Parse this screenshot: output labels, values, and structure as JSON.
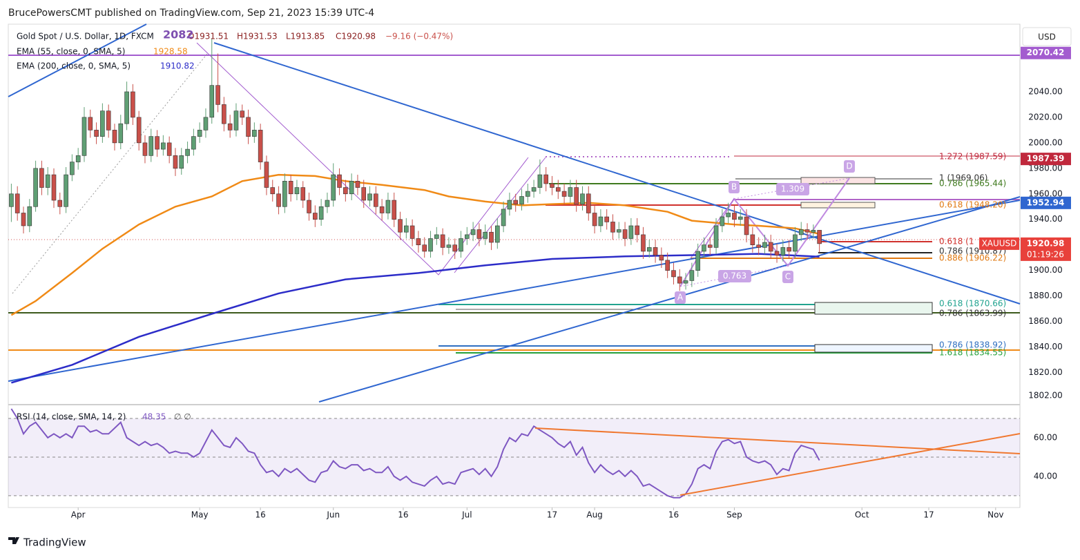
{
  "header": {
    "publisher": "BrucePowersCMT published on TradingView.com, Sep 21, 2023 15:39 UTC-4"
  },
  "chart_data": {
    "type": "candlestick",
    "title": "Gold Spot / U.S. Dollar, 1D, FXCM",
    "ohlc_labels": [
      "O1931.51",
      "H1931.53",
      "L1913.85",
      "C1920.98",
      "−9.16 (−0.47%)"
    ],
    "currency": "USD",
    "up_color": "#5f9f74",
    "down_color": "#c9504a",
    "open": [
      1950,
      1960,
      1945,
      1935,
      1950,
      1980,
      1965,
      1975,
      1955,
      1950,
      1975,
      1985,
      1990,
      2020,
      2010,
      2005,
      2025,
      2010,
      2000,
      2015,
      2040,
      2020,
      2000,
      1990,
      2005,
      1995,
      2000,
      1990,
      1980,
      1990,
      1995,
      2005,
      2010,
      2020,
      2045,
      2030,
      2015,
      2010,
      2025,
      2020,
      2005,
      2010,
      1985,
      1965,
      1960,
      1950,
      1970,
      1960,
      1965,
      1955,
      1945,
      1940,
      1950,
      1955,
      1975,
      1965,
      1960,
      1970,
      1965,
      1955,
      1960,
      1950,
      1945,
      1955,
      1940,
      1930,
      1935,
      1925,
      1920,
      1915,
      1925,
      1928,
      1918,
      1920,
      1915,
      1925,
      1928,
      1932,
      1925,
      1930,
      1922,
      1935,
      1948,
      1955,
      1952,
      1958,
      1962,
      1965,
      1975,
      1968,
      1965,
      1962,
      1958,
      1965,
      1952,
      1960,
      1945,
      1935,
      1942,
      1938,
      1930,
      1932,
      1925,
      1935,
      1928,
      1915,
      1918,
      1912,
      1908,
      1900,
      1895,
      1890,
      1892,
      1900,
      1915,
      1920,
      1918,
      1935,
      1942,
      1945,
      1940,
      1942,
      1928,
      1920,
      1918,
      1922,
      1915,
      1912,
      1918,
      1915,
      1928,
      1932,
      1930,
      1931.51
    ],
    "high": [
      1968,
      1966,
      1950,
      1956,
      1986,
      1986,
      1981,
      1980,
      1961,
      1981,
      1991,
      1996,
      2028,
      2026,
      2016,
      2031,
      2030,
      2015,
      2022,
      2048,
      2046,
      2025,
      2006,
      2011,
      2010,
      2006,
      2005,
      1996,
      1996,
      2001,
      2011,
      2016,
      2027,
      2082,
      2070,
      2036,
      2022,
      2031,
      2030,
      2026,
      2016,
      2015,
      1990,
      1971,
      1966,
      1976,
      1975,
      1971,
      1970,
      1961,
      1951,
      1956,
      1961,
      1984,
      1980,
      1971,
      1976,
      1975,
      1971,
      1966,
      1966,
      1956,
      1961,
      1961,
      1946,
      1941,
      1940,
      1931,
      1926,
      1931,
      1934,
      1933,
      1926,
      1925,
      1931,
      1934,
      1938,
      1937,
      1936,
      1935,
      1941,
      1954,
      1961,
      1960,
      1964,
      1968,
      1971,
      1987,
      1981,
      1974,
      1971,
      1968,
      1971,
      1971,
      1966,
      1966,
      1951,
      1948,
      1948,
      1944,
      1938,
      1938,
      1941,
      1941,
      1934,
      1924,
      1924,
      1918,
      1914,
      1906,
      1901,
      1898,
      1906,
      1921,
      1926,
      1926,
      1941,
      1948,
      1953,
      1951,
      1948,
      1948,
      1934,
      1926,
      1928,
      1928,
      1921,
      1924,
      1924,
      1934,
      1938,
      1937,
      1936,
      1931.53
    ],
    "low": [
      1938,
      1939,
      1929,
      1930,
      1946,
      1959,
      1959,
      1949,
      1944,
      1945,
      1970,
      1979,
      1985,
      2004,
      1999,
      2000,
      2004,
      1994,
      1995,
      2010,
      2014,
      1994,
      1984,
      1985,
      1989,
      1990,
      1984,
      1974,
      1975,
      1984,
      1990,
      2000,
      2004,
      2015,
      2024,
      2009,
      2004,
      2005,
      2014,
      1999,
      2000,
      1979,
      1959,
      1954,
      1944,
      1945,
      1954,
      1955,
      1949,
      1939,
      1934,
      1935,
      1945,
      1950,
      1959,
      1954,
      1955,
      1959,
      1949,
      1950,
      1944,
      1939,
      1940,
      1934,
      1924,
      1925,
      1919,
      1914,
      1910,
      1910,
      1920,
      1912,
      1913,
      1909,
      1910,
      1920,
      1923,
      1919,
      1920,
      1916,
      1917,
      1930,
      1943,
      1946,
      1947,
      1953,
      1957,
      1960,
      1962,
      1959,
      1956,
      1952,
      1953,
      1946,
      1947,
      1939,
      1929,
      1930,
      1932,
      1924,
      1925,
      1919,
      1920,
      1922,
      1909,
      1910,
      1906,
      1902,
      1894,
      1889,
      1884,
      1885,
      1887,
      1895,
      1910,
      1912,
      1913,
      1930,
      1937,
      1934,
      1935,
      1922,
      1914,
      1912,
      1913,
      1909,
      1906,
      1907,
      1909,
      1910,
      1923,
      1924,
      1925,
      1913.85
    ],
    "close": [
      1960,
      1945,
      1935,
      1950,
      1980,
      1965,
      1975,
      1955,
      1950,
      1975,
      1985,
      1990,
      2020,
      2010,
      2005,
      2025,
      2010,
      2000,
      2015,
      2040,
      2020,
      2000,
      1990,
      2005,
      1995,
      2000,
      1990,
      1980,
      1990,
      1995,
      2005,
      2010,
      2020,
      2045,
      2030,
      2015,
      2010,
      2025,
      2020,
      2005,
      2010,
      1985,
      1965,
      1960,
      1950,
      1970,
      1960,
      1965,
      1955,
      1945,
      1940,
      1950,
      1955,
      1975,
      1965,
      1960,
      1970,
      1965,
      1955,
      1960,
      1950,
      1945,
      1955,
      1940,
      1930,
      1935,
      1925,
      1920,
      1915,
      1925,
      1928,
      1918,
      1920,
      1915,
      1925,
      1928,
      1932,
      1925,
      1930,
      1922,
      1935,
      1948,
      1955,
      1952,
      1958,
      1962,
      1965,
      1975,
      1968,
      1965,
      1962,
      1958,
      1965,
      1952,
      1960,
      1945,
      1935,
      1942,
      1938,
      1930,
      1932,
      1925,
      1935,
      1928,
      1915,
      1918,
      1912,
      1908,
      1900,
      1895,
      1890,
      1892,
      1900,
      1915,
      1920,
      1918,
      1935,
      1942,
      1945,
      1940,
      1942,
      1928,
      1920,
      1918,
      1922,
      1915,
      1912,
      1918,
      1915,
      1928,
      1932,
      1930,
      1931.51,
      1920.98
    ],
    "overlays": [
      {
        "name": "EMA (55, close, 0, SMA, 5)",
        "color": "#f08a16",
        "x": [
          0,
          4,
          10,
          15,
          21,
          27,
          33,
          38,
          44,
          50,
          55,
          61,
          68,
          72,
          78,
          84,
          89,
          95,
          101,
          108,
          112,
          119,
          123,
          129,
          133
        ],
        "values": [
          1865,
          1876,
          1898,
          1917,
          1936,
          1950,
          1958,
          1970,
          1975,
          1974,
          1970,
          1967,
          1963,
          1958,
          1954,
          1951,
          1952,
          1953,
          1951,
          1946,
          1939,
          1936,
          1935,
          1933,
          1928.58
        ]
      },
      {
        "name": "EMA (200, close, 0, SMA, 5)",
        "color": "#2c2cc8",
        "x": [
          0,
          10,
          21,
          33,
          44,
          55,
          67,
          78,
          89,
          101,
          112,
          123,
          133
        ],
        "values": [
          1812,
          1826,
          1848,
          1866,
          1882,
          1893,
          1898,
          1904,
          1909,
          1911,
          1912,
          1913,
          1910.82
        ]
      }
    ],
    "ylim": [
      1797,
      2093
    ],
    "yticks": [
      {
        "value": 2040,
        "label": "2040.00"
      },
      {
        "value": 2020,
        "label": "2020.00"
      },
      {
        "value": 2000,
        "label": "2000.00"
      },
      {
        "value": 1980,
        "label": "1980.00"
      },
      {
        "value": 1960,
        "label": "1960.00"
      },
      {
        "value": 1940,
        "label": "1940.00"
      },
      {
        "value": 1900,
        "label": "1900.00"
      },
      {
        "value": 1880,
        "label": "1880.00"
      },
      {
        "value": 1860,
        "label": "1860.00"
      },
      {
        "value": 1840,
        "label": "1840.00"
      },
      {
        "value": 1820,
        "label": "1820.00"
      },
      {
        "value": 1802,
        "label": "1802.00"
      }
    ],
    "xlim": [
      -0.5,
      166
    ],
    "xticks": [
      {
        "value": 11,
        "label": "Apr"
      },
      {
        "value": 31,
        "label": "May"
      },
      {
        "value": 41,
        "label": "16"
      },
      {
        "value": 53,
        "label": "Jun"
      },
      {
        "value": 64.5,
        "label": "16"
      },
      {
        "value": 75,
        "label": "Jul"
      },
      {
        "value": 89,
        "label": "17"
      },
      {
        "value": 96,
        "label": "Aug"
      },
      {
        "value": 109,
        "label": "16"
      },
      {
        "value": 119,
        "label": "Sep"
      },
      {
        "value": 140,
        "label": "Oct"
      },
      {
        "value": 151,
        "label": "17"
      },
      {
        "value": 162,
        "label": "Nov"
      }
    ],
    "price_tags": [
      {
        "value": 2070.42,
        "color": "#a35ccf"
      },
      {
        "value": 1987.39,
        "color": "#c0283c"
      },
      {
        "value": 1952.94,
        "color": "#2f66d0"
      },
      {
        "value": 1920.98,
        "color": "#e8413b",
        "symbol": "XAUUSD",
        "countdown": "01:19:26"
      }
    ],
    "fib_labels": [
      {
        "text": "1.272 (1987.59)",
        "color": "#c0283c"
      },
      {
        "text": "1 (1969.06)",
        "color": "#333333"
      },
      {
        "text": "0.786 (1965.44)",
        "color": "#3f7a1e"
      },
      {
        "text": "0.618 (1948.20)",
        "color": "#e07810"
      },
      {
        "text": "0.618 (1",
        "color": "#d0302c"
      },
      {
        "text": "0.786 (1910.87)",
        "color": "#333333"
      },
      {
        "text": "0.886 (1906.22)",
        "color": "#e07810"
      },
      {
        "text": "0.618 (1870.66)",
        "color": "#21a38f"
      },
      {
        "text": "0.786 (1863.99)",
        "color": "#333333"
      },
      {
        "text": "0.786 (1838.92)",
        "color": "#2f6fc0"
      },
      {
        "text": "1.618 (1834.55)",
        "color": "#25a03a"
      }
    ],
    "pattern_labels": [
      "A",
      "B",
      "C",
      "D",
      "0.763",
      "1.309"
    ],
    "high_label": "2082",
    "rsi": {
      "title": "RSI (14, close, SMA, 14, 2)",
      "extra": "∅ ∅",
      "color": "#7e57c2",
      "values": [
        75,
        70,
        62,
        66,
        68,
        64,
        60,
        62,
        60,
        62,
        60,
        66,
        66,
        63,
        64,
        62,
        62,
        65,
        68,
        60,
        58,
        56,
        58,
        56,
        57,
        55,
        52,
        53,
        52,
        52,
        50,
        52,
        58,
        64,
        60,
        56,
        55,
        60,
        57,
        53,
        52,
        46,
        42,
        43,
        40,
        44,
        42,
        44,
        41,
        38,
        37,
        42,
        43,
        48,
        45,
        44,
        46,
        46,
        43,
        44,
        42,
        42,
        45,
        40,
        38,
        40,
        37,
        36,
        35,
        38,
        40,
        36,
        37,
        36,
        42,
        43,
        44,
        41,
        44,
        40,
        45,
        54,
        60,
        58,
        62,
        61,
        66,
        64,
        62,
        60,
        57,
        55,
        58,
        51,
        55,
        47,
        42,
        46,
        43,
        41,
        43,
        40,
        43,
        40,
        35,
        36,
        34,
        32,
        30,
        29,
        29,
        31,
        36,
        44,
        46,
        44,
        53,
        58,
        59,
        57,
        58,
        50,
        48,
        47,
        48,
        46,
        41,
        44,
        43,
        52,
        56,
        55,
        54,
        48.35
      ],
      "ylim": [
        23.9,
        75.7
      ],
      "yticks": [
        {
          "value": 60,
          "label": "60.00"
        },
        {
          "value": 40,
          "label": "40.00"
        }
      ],
      "levels": [
        70,
        50,
        30
      ]
    }
  },
  "footer": {
    "brand": "TradingView"
  }
}
